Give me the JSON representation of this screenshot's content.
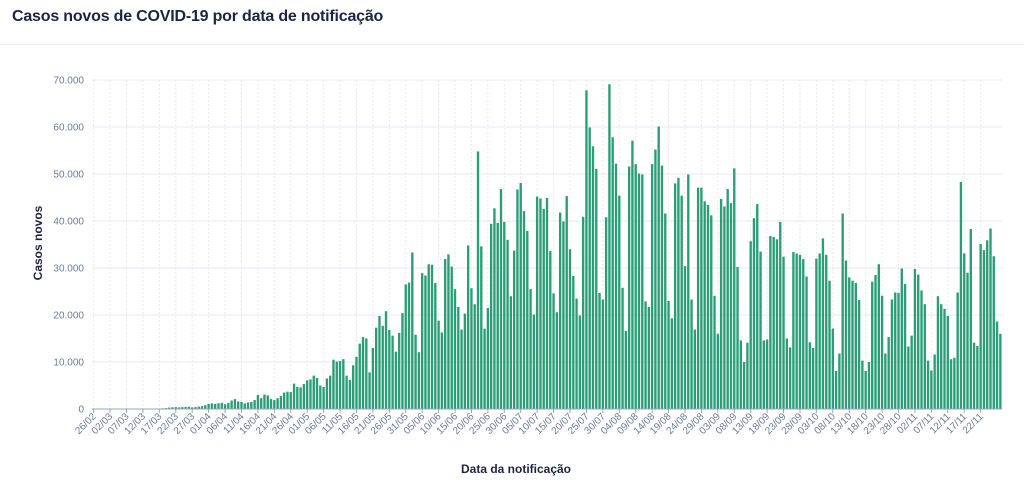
{
  "header": {
    "title": "Casos novos de COVID-19 por data de notificação"
  },
  "colors": {
    "bar": "#2b9e78",
    "grid": "#e6e9ef",
    "axis": "#9aa4b8",
    "tick_text": "#6b7a99"
  },
  "chart_data": {
    "type": "bar",
    "xlabel": "Data da notificação",
    "ylabel": "Casos novos",
    "ylim": [
      0,
      70000
    ],
    "y_ticks": [
      "0",
      "10.000",
      "20.000",
      "30.000",
      "40.000",
      "50.000",
      "60.000",
      "70.000"
    ],
    "x_tick_labels": [
      "26/02",
      "02/03",
      "07/03",
      "12/03",
      "17/03",
      "22/03",
      "27/03",
      "01/04",
      "06/04",
      "11/04",
      "16/04",
      "21/04",
      "26/04",
      "01/05",
      "06/05",
      "11/05",
      "16/05",
      "21/05",
      "26/05",
      "31/05",
      "05/06",
      "10/06",
      "15/06",
      "20/06",
      "25/06",
      "30/06",
      "05/07",
      "10/07",
      "15/07",
      "20/07",
      "25/07",
      "30/07",
      "04/08",
      "09/08",
      "14/08",
      "19/08",
      "24/08",
      "29/08",
      "03/09",
      "08/09",
      "13/09",
      "18/09",
      "23/09",
      "28/09",
      "03/10",
      "08/10",
      "13/10",
      "18/10",
      "23/10",
      "28/10",
      "02/11",
      "07/11",
      "12/11",
      "17/11",
      "22/11"
    ],
    "x_tick_step": 5,
    "first_date": "26/02",
    "values": [
      0,
      0,
      0,
      0,
      0,
      0,
      0,
      0,
      0,
      0,
      0,
      0,
      0,
      0,
      0,
      0,
      0,
      0,
      0,
      0,
      100,
      150,
      200,
      300,
      350,
      400,
      350,
      400,
      450,
      500,
      350,
      400,
      500,
      600,
      800,
      1100,
      1200,
      1100,
      1200,
      1300,
      1000,
      1300,
      1800,
      2100,
      1600,
      1500,
      1200,
      1400,
      1500,
      1900,
      3000,
      2300,
      3100,
      2900,
      2100,
      1900,
      2300,
      2800,
      3500,
      3700,
      3600,
      5400,
      4700,
      4600,
      5300,
      6100,
      6300,
      7100,
      6600,
      5000,
      4700,
      6500,
      7100,
      10500,
      10100,
      10200,
      10600,
      7100,
      6200,
      9300,
      11100,
      13900,
      15300,
      15000,
      7800,
      13000,
      17300,
      19800,
      17700,
      20800,
      16800,
      15600,
      12200,
      16200,
      20400,
      26500,
      26900,
      33300,
      15800,
      12100,
      28900,
      28400,
      30800,
      30700,
      26800,
      18800,
      16300,
      31900,
      32900,
      30300,
      25500,
      21700,
      16900,
      20300,
      34800,
      25700,
      22300,
      54800,
      34600,
      17100,
      21500,
      39400,
      42700,
      39600,
      46800,
      39800,
      36000,
      24000,
      33700,
      46700,
      48100,
      42100,
      37900,
      25500,
      20100,
      45200,
      44800,
      42600,
      44900,
      33600,
      24600,
      20600,
      41800,
      39900,
      45300,
      34000,
      28300,
      23500,
      19900,
      40900,
      67800,
      59900,
      55900,
      51100,
      24700,
      23300,
      40800,
      69100,
      57800,
      52200,
      45400,
      25800,
      16600,
      51600,
      57100,
      52100,
      50100,
      49900,
      22900,
      21700,
      52100,
      55200,
      60100,
      51800,
      41600,
      23000,
      19300,
      48000,
      49200,
      45400,
      30400,
      49900,
      23300,
      16900,
      47100,
      47100,
      44200,
      43400,
      41200,
      24100,
      16000,
      44700,
      43100,
      46800,
      43800,
      51200,
      30200,
      14600,
      10000,
      14100,
      35700,
      40600,
      43600,
      33500,
      14600,
      14800,
      36800,
      36600,
      36100,
      39800,
      32400,
      15000,
      13100,
      33400,
      33100,
      32800,
      31900,
      28200,
      14200,
      13000,
      32000,
      33100,
      36300,
      32800,
      27300,
      17100,
      8100,
      11800,
      41600,
      31600,
      28000,
      27300,
      26800,
      23200,
      10300,
      8100,
      10000,
      27100,
      28500,
      30800,
      24100,
      11800,
      15300,
      23300,
      24800,
      24700,
      29900,
      26600,
      13300,
      15600,
      29800,
      28600,
      25200,
      22300,
      10300,
      8200,
      11600,
      24000,
      22300,
      21300,
      19800,
      10600,
      10900,
      24800,
      48300,
      33100,
      29000,
      38300,
      14100,
      13400,
      35100,
      33800,
      35900,
      38400,
      32500,
      18600,
      16000
    ]
  }
}
